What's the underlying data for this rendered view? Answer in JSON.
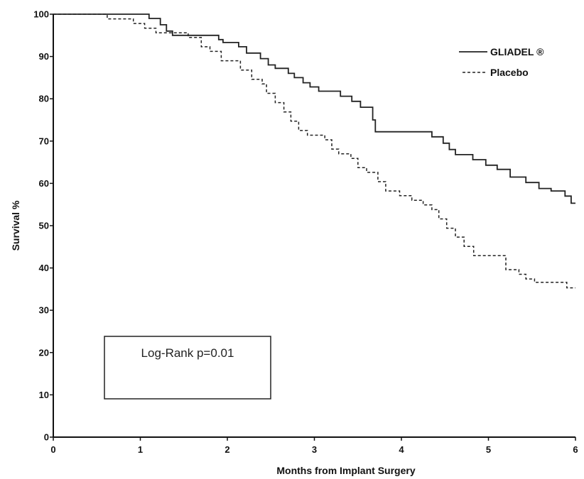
{
  "chart_data": {
    "type": "line",
    "xlabel": "Months from Implant Surgery",
    "ylabel": "Survival %",
    "xlim": [
      0,
      6
    ],
    "ylim": [
      0,
      100
    ],
    "x_ticks": [
      "0",
      "1",
      "2",
      "3",
      "4",
      "5",
      "6"
    ],
    "y_ticks": [
      "0",
      "10",
      "20",
      "30",
      "40",
      "50",
      "60",
      "70",
      "80",
      "90",
      "100"
    ],
    "grid": false,
    "legend_position": "top-right",
    "annotation": "Log-Rank p=0.01",
    "series": [
      {
        "name": "GLIADEL ®",
        "style": "solid",
        "color": "#222222",
        "points": [
          [
            0,
            100
          ],
          [
            1.1,
            100
          ],
          [
            1.1,
            99
          ],
          [
            1.23,
            99
          ],
          [
            1.23,
            97.5
          ],
          [
            1.3,
            97.5
          ],
          [
            1.3,
            96
          ],
          [
            1.37,
            96
          ],
          [
            1.37,
            95
          ],
          [
            1.9,
            95
          ],
          [
            1.9,
            94
          ],
          [
            1.95,
            94
          ],
          [
            1.95,
            93.3
          ],
          [
            2.13,
            93.3
          ],
          [
            2.13,
            92.3
          ],
          [
            2.22,
            92.3
          ],
          [
            2.22,
            90.8
          ],
          [
            2.38,
            90.8
          ],
          [
            2.38,
            89.5
          ],
          [
            2.47,
            89.5
          ],
          [
            2.47,
            88
          ],
          [
            2.55,
            88
          ],
          [
            2.55,
            87.2
          ],
          [
            2.7,
            87.2
          ],
          [
            2.7,
            86
          ],
          [
            2.77,
            86
          ],
          [
            2.77,
            85
          ],
          [
            2.87,
            85
          ],
          [
            2.87,
            83.8
          ],
          [
            2.95,
            83.8
          ],
          [
            2.95,
            82.8
          ],
          [
            3.05,
            82.8
          ],
          [
            3.05,
            81.8
          ],
          [
            3.3,
            81.8
          ],
          [
            3.3,
            80.6
          ],
          [
            3.43,
            80.6
          ],
          [
            3.43,
            79.4
          ],
          [
            3.53,
            79.4
          ],
          [
            3.53,
            78
          ],
          [
            3.67,
            78
          ],
          [
            3.67,
            75
          ],
          [
            3.7,
            75
          ],
          [
            3.7,
            72.2
          ],
          [
            4.35,
            72.2
          ],
          [
            4.35,
            71
          ],
          [
            4.48,
            71
          ],
          [
            4.48,
            69.5
          ],
          [
            4.55,
            69.5
          ],
          [
            4.55,
            68
          ],
          [
            4.62,
            68
          ],
          [
            4.62,
            66.8
          ],
          [
            4.82,
            66.8
          ],
          [
            4.82,
            65.6
          ],
          [
            4.97,
            65.6
          ],
          [
            4.97,
            64.3
          ],
          [
            5.1,
            64.3
          ],
          [
            5.1,
            63.3
          ],
          [
            5.25,
            63.3
          ],
          [
            5.25,
            61.5
          ],
          [
            5.43,
            61.5
          ],
          [
            5.43,
            60.2
          ],
          [
            5.58,
            60.2
          ],
          [
            5.58,
            58.8
          ],
          [
            5.72,
            58.8
          ],
          [
            5.72,
            58.2
          ],
          [
            5.88,
            58.2
          ],
          [
            5.88,
            57
          ],
          [
            5.95,
            57
          ],
          [
            5.95,
            55.3
          ],
          [
            6,
            55.3
          ]
        ]
      },
      {
        "name": "Placebo",
        "style": "dashed",
        "color": "#222222",
        "points": [
          [
            0,
            100
          ],
          [
            0.62,
            100
          ],
          [
            0.62,
            98.9
          ],
          [
            0.92,
            98.9
          ],
          [
            0.92,
            97.8
          ],
          [
            1.05,
            97.8
          ],
          [
            1.05,
            96.7
          ],
          [
            1.18,
            96.7
          ],
          [
            1.18,
            95.6
          ],
          [
            1.55,
            95.6
          ],
          [
            1.55,
            94.5
          ],
          [
            1.7,
            94.5
          ],
          [
            1.7,
            92.3
          ],
          [
            1.8,
            92.3
          ],
          [
            1.8,
            91.2
          ],
          [
            1.93,
            91.2
          ],
          [
            1.93,
            89
          ],
          [
            2.15,
            89
          ],
          [
            2.15,
            86.8
          ],
          [
            2.28,
            86.8
          ],
          [
            2.28,
            84.6
          ],
          [
            2.4,
            84.6
          ],
          [
            2.4,
            83.5
          ],
          [
            2.45,
            83.5
          ],
          [
            2.45,
            81.3
          ],
          [
            2.55,
            81.3
          ],
          [
            2.55,
            79.1
          ],
          [
            2.65,
            79.1
          ],
          [
            2.65,
            76.9
          ],
          [
            2.73,
            76.9
          ],
          [
            2.73,
            74.7
          ],
          [
            2.82,
            74.7
          ],
          [
            2.82,
            72.5
          ],
          [
            2.92,
            72.5
          ],
          [
            2.92,
            71.4
          ],
          [
            3.12,
            71.4
          ],
          [
            3.12,
            70.3
          ],
          [
            3.2,
            70.3
          ],
          [
            3.2,
            68.1
          ],
          [
            3.28,
            68.1
          ],
          [
            3.28,
            67
          ],
          [
            3.42,
            67
          ],
          [
            3.42,
            65.9
          ],
          [
            3.5,
            65.9
          ],
          [
            3.5,
            63.7
          ],
          [
            3.6,
            63.7
          ],
          [
            3.6,
            62.6
          ],
          [
            3.73,
            62.6
          ],
          [
            3.73,
            60.4
          ],
          [
            3.82,
            60.4
          ],
          [
            3.82,
            58.2
          ],
          [
            3.98,
            58.2
          ],
          [
            3.98,
            57.1
          ],
          [
            4.12,
            57.1
          ],
          [
            4.12,
            56
          ],
          [
            4.25,
            56
          ],
          [
            4.25,
            54.9
          ],
          [
            4.35,
            54.9
          ],
          [
            4.35,
            53.8
          ],
          [
            4.43,
            53.8
          ],
          [
            4.43,
            51.6
          ],
          [
            4.52,
            51.6
          ],
          [
            4.52,
            49.4
          ],
          [
            4.62,
            49.4
          ],
          [
            4.62,
            47.3
          ],
          [
            4.72,
            47.3
          ],
          [
            4.72,
            45.1
          ],
          [
            4.83,
            45.1
          ],
          [
            4.83,
            42.9
          ],
          [
            5.2,
            42.9
          ],
          [
            5.2,
            39.6
          ],
          [
            5.35,
            39.6
          ],
          [
            5.35,
            38.5
          ],
          [
            5.43,
            38.5
          ],
          [
            5.43,
            37.4
          ],
          [
            5.53,
            37.4
          ],
          [
            5.53,
            36.6
          ],
          [
            5.9,
            36.6
          ],
          [
            5.9,
            35.3
          ],
          [
            6,
            35.3
          ]
        ]
      }
    ]
  }
}
